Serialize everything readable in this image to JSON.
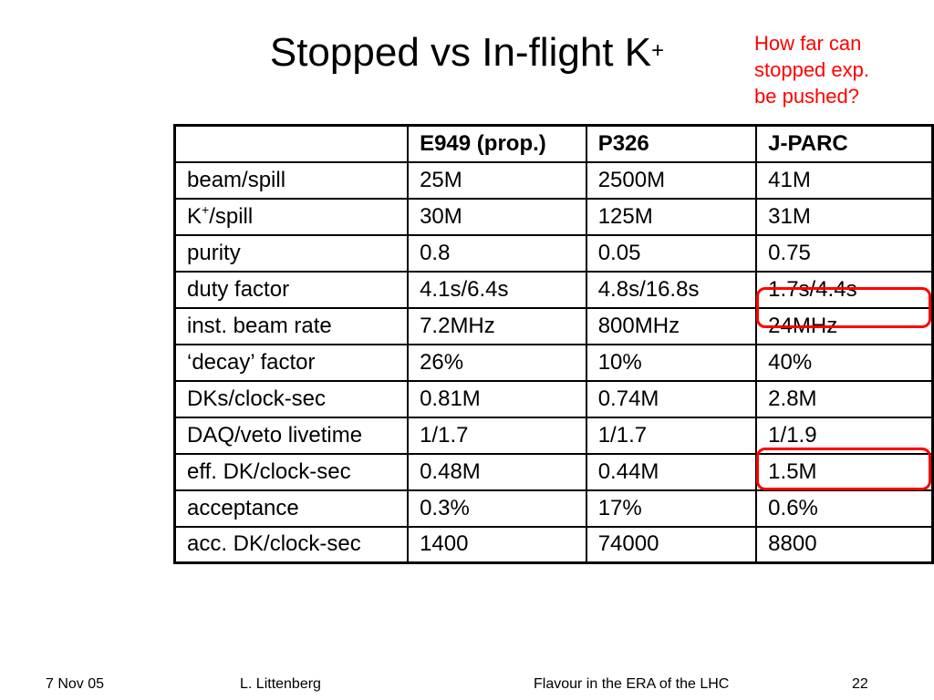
{
  "title": {
    "text": "Stopped vs In-flight K",
    "sup": "+"
  },
  "note": [
    "How far can",
    "stopped exp.",
    "be pushed?"
  ],
  "table": {
    "header": [
      "",
      "E949 (prop.)",
      "P326",
      "J-PARC"
    ],
    "rows": [
      {
        "label": "beam/spill",
        "values": [
          "25M",
          "2500M",
          "41M"
        ]
      },
      {
        "label_main": "K",
        "label_sup": "+",
        "label_rest": "/spill",
        "values": [
          "30M",
          "125M",
          "31M"
        ]
      },
      {
        "label": "purity",
        "values": [
          "0.8",
          "0.05",
          "0.75"
        ]
      },
      {
        "label": "duty factor",
        "values": [
          "4.1s/6.4s",
          "4.8s/16.8s",
          "1.7s/4.4s"
        ]
      },
      {
        "label": "inst. beam rate",
        "values": [
          "7.2MHz",
          "800MHz",
          "24MHz"
        ]
      },
      {
        "label": "‘decay’ factor",
        "values": [
          "26%",
          "10%",
          "40%"
        ]
      },
      {
        "label": "DKs/clock-sec",
        "values": [
          "0.81M",
          "0.74M",
          "2.8M"
        ]
      },
      {
        "label": "DAQ/veto livetime",
        "values": [
          "1/1.7",
          "1/1.7",
          "1/1.9"
        ]
      },
      {
        "label": "eff. DK/clock-sec",
        "values": [
          "0.48M",
          "0.44M",
          "1.5M"
        ]
      },
      {
        "label": "acceptance",
        "values": [
          "0.3%",
          "17%",
          "0.6%"
        ]
      },
      {
        "label": "acc. DK/clock-sec",
        "values": [
          "1400",
          "74000",
          "8800"
        ]
      }
    ]
  },
  "highlight_color": "#ff0000",
  "footer": {
    "date": "7 Nov 05",
    "author": "L. Littenberg",
    "event": "Flavour in the ERA of the LHC",
    "page": "22"
  }
}
